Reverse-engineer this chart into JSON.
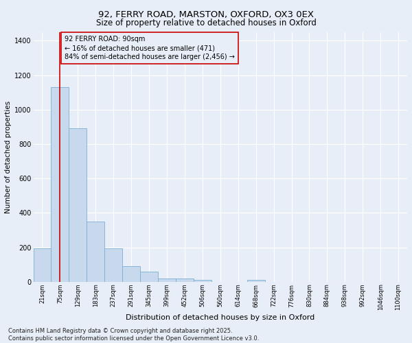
{
  "title_line1": "92, FERRY ROAD, MARSTON, OXFORD, OX3 0EX",
  "title_line2": "Size of property relative to detached houses in Oxford",
  "xlabel": "Distribution of detached houses by size in Oxford",
  "ylabel": "Number of detached properties",
  "categories": [
    "21sqm",
    "75sqm",
    "129sqm",
    "183sqm",
    "237sqm",
    "291sqm",
    "345sqm",
    "399sqm",
    "452sqm",
    "506sqm",
    "560sqm",
    "614sqm",
    "668sqm",
    "722sqm",
    "776sqm",
    "830sqm",
    "884sqm",
    "938sqm",
    "992sqm",
    "1046sqm",
    "1100sqm"
  ],
  "values": [
    195,
    1130,
    890,
    350,
    195,
    90,
    58,
    20,
    18,
    10,
    0,
    0,
    12,
    0,
    0,
    0,
    0,
    0,
    0,
    0,
    0
  ],
  "bar_color": "#c9d9ed",
  "bar_edge_color": "#7bafd4",
  "vline_x_index": 1,
  "vline_color": "#cc0000",
  "ylim": [
    0,
    1450
  ],
  "yticks": [
    0,
    200,
    400,
    600,
    800,
    1000,
    1200,
    1400
  ],
  "annotation_text": "92 FERRY ROAD: 90sqm\n← 16% of detached houses are smaller (471)\n84% of semi-detached houses are larger (2,456) →",
  "annotation_box_color": "#cc0000",
  "background_color": "#e8eef7",
  "footer_line1": "Contains HM Land Registry data © Crown copyright and database right 2025.",
  "footer_line2": "Contains public sector information licensed under the Open Government Licence v3.0.",
  "title_fontsize": 9.5,
  "subtitle_fontsize": 8.5,
  "ylabel_fontsize": 7.5,
  "xlabel_fontsize": 8,
  "tick_fontsize": 6,
  "annot_fontsize": 7,
  "footer_fontsize": 6
}
